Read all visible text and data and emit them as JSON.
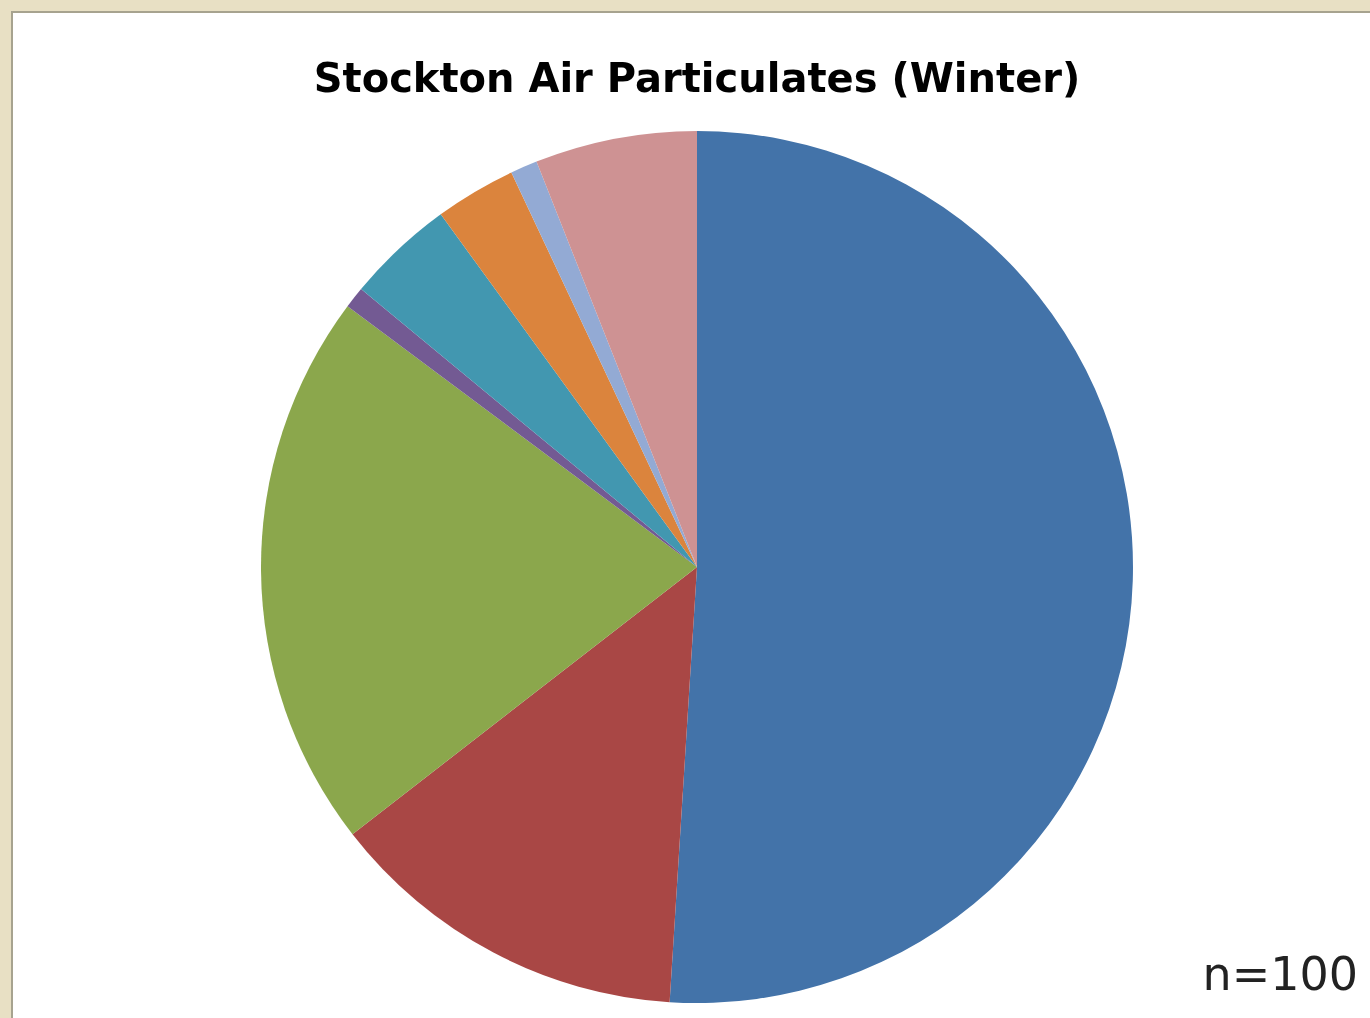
{
  "chart_data": {
    "type": "pie",
    "title": "Stockton Air Particulates (Winter)",
    "categories": [
      null,
      null,
      null,
      null,
      null,
      null,
      null,
      null
    ],
    "values": [
      51,
      13.5,
      20.7,
      0.8,
      4,
      3,
      1,
      6
    ],
    "colors": [
      "#4373a9",
      "#a94745",
      "#8ba74c",
      "#735a93",
      "#4297b0",
      "#db843d",
      "#93aad4",
      "#ce9293"
    ],
    "annotations": [
      "n=100"
    ]
  }
}
